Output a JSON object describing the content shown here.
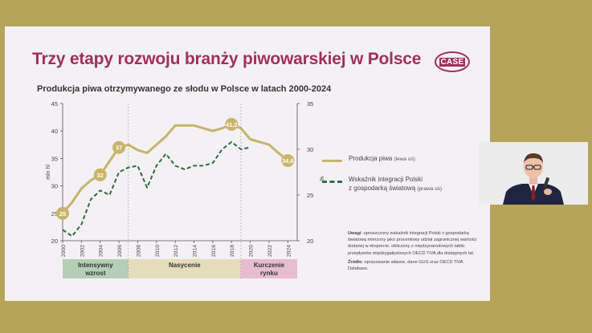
{
  "slide": {
    "title": "Trzy etapy rozwoju branży piwowarskiej w Polsce",
    "logo_text": "CASE",
    "subtitle": "Produkcja piwa otrzymywanego ze słodu w Polsce w latach 2000-2024"
  },
  "chart_data": {
    "type": "line",
    "left_axis": {
      "label": "mln hl",
      "range": [
        20,
        45
      ],
      "ticks": [
        20,
        25,
        30,
        35,
        40,
        45
      ]
    },
    "right_axis": {
      "label": "%",
      "range": [
        20,
        35
      ],
      "ticks": [
        20,
        25,
        30,
        35
      ]
    },
    "x_ticks": [
      "2000",
      "2002",
      "2004",
      "2006",
      "2008",
      "2010",
      "2012",
      "2014",
      "2016",
      "2018",
      "2020",
      "2022",
      "2024"
    ],
    "series": [
      {
        "name": "Produkcja piwa",
        "axis_note": "(lewa oś)",
        "axis": "left",
        "color": "#c8b46a",
        "x": [
          2000,
          2001,
          2002,
          2003,
          2004,
          2005,
          2006,
          2007,
          2008,
          2009,
          2010,
          2011,
          2012,
          2013,
          2014,
          2015,
          2016,
          2017,
          2018,
          2019,
          2020,
          2021,
          2022,
          2023,
          2024
        ],
        "values": [
          25,
          27,
          29.5,
          31,
          32,
          34.5,
          37,
          37.5,
          36.5,
          36,
          37.5,
          39,
          41,
          41,
          41,
          40.5,
          40,
          40.5,
          41.2,
          40.5,
          38.5,
          38,
          37.5,
          36,
          34.6
        ]
      },
      {
        "name": "Wskaźnik integracji Polski z gospodarką światową",
        "axis_note": "(prawa oś)",
        "axis": "right",
        "color": "#2e6e40",
        "x": [
          2000,
          2001,
          2002,
          2003,
          2004,
          2005,
          2006,
          2007,
          2008,
          2009,
          2010,
          2011,
          2012,
          2013,
          2014,
          2015,
          2016,
          2017,
          2018,
          2019,
          2020
        ],
        "values": [
          21.2,
          20.5,
          21.8,
          24.5,
          25.5,
          25,
          27.5,
          28,
          28.2,
          25.8,
          28.2,
          29.5,
          28.2,
          27.8,
          28.2,
          28.2,
          28.5,
          30,
          30.8,
          30,
          30.2
        ]
      }
    ],
    "data_labels": [
      {
        "x": 2000,
        "text": "25"
      },
      {
        "x": 2004,
        "text": "32"
      },
      {
        "x": 2006,
        "text": "37"
      },
      {
        "x": 2018,
        "text": "41,2"
      },
      {
        "x": 2024,
        "text": "34,6"
      }
    ],
    "phases": [
      {
        "label_line1": "Intensywny",
        "label_line2": "wzrost",
        "from": 2000,
        "to": 2007,
        "color": "#b4cfb4"
      },
      {
        "label_line1": "Nasycenie",
        "label_line2": "",
        "from": 2007,
        "to": 2019,
        "color": "#e6dcbc"
      },
      {
        "label_line1": "Kurczenie",
        "label_line2": "rynku",
        "from": 2019,
        "to": 2025,
        "color": "#e6bdd0"
      }
    ]
  },
  "legend": {
    "item1": "Produkcja piwa",
    "item1_note": "(lewa oś)",
    "item2_line1": "Wskaźnik integracji Polski",
    "item2_line2": "z gospodarką światową",
    "item2_note": "(prawa oś)"
  },
  "notes": {
    "uwagi_label": "Uwagi",
    "uwagi_text": ": uproszczony wskaźnik integracji Polski z gospodarką światową mierzony jako procentowy udział zagranicznej wartości dodanej w eksporcie, obliczony z międzynarodowych tablic przepływów międzygałęziowych OECD TiVA dla dostępnych lat.",
    "zrodlo_label": "Źródło",
    "zrodlo_text": ": opracowanie własne, dane GUS oraz OECD TiVA Database."
  }
}
